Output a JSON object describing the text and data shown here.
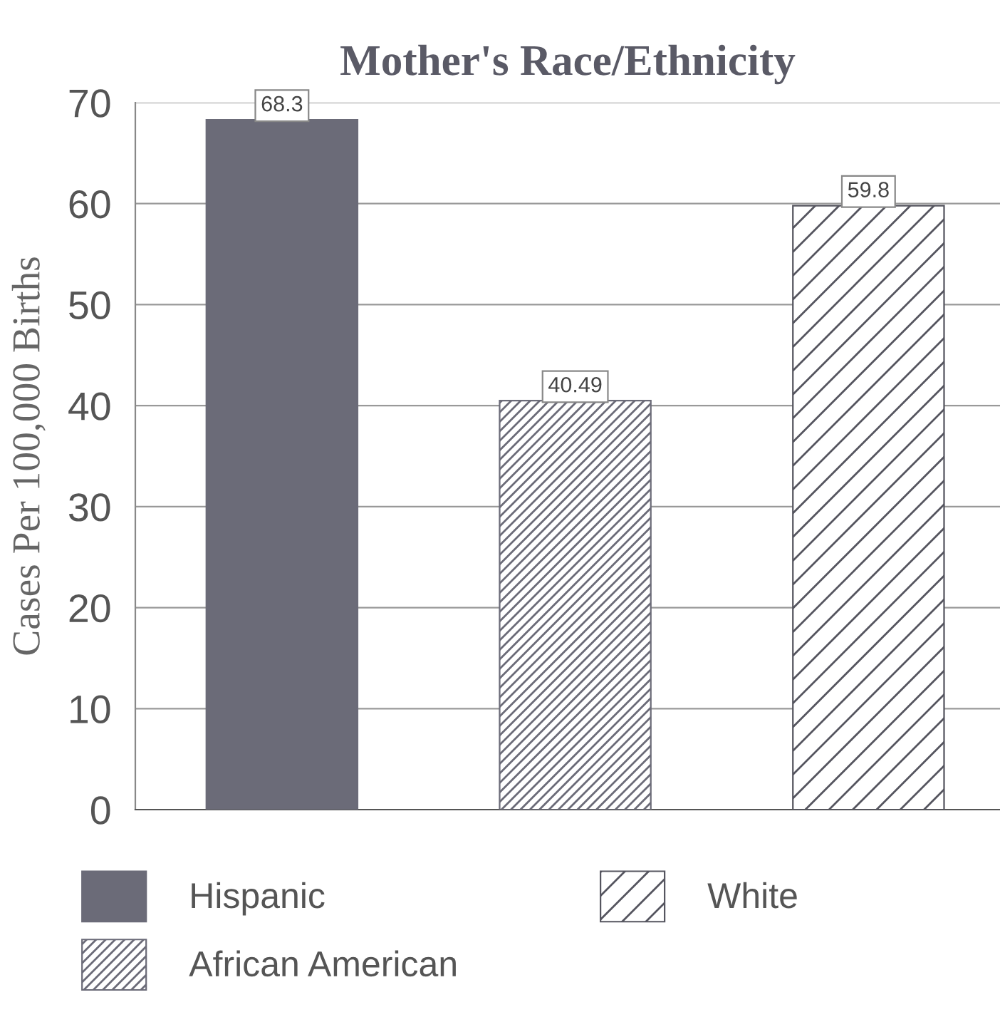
{
  "chart_data": {
    "type": "bar",
    "title": "Mother's Race/Ethnicity",
    "ylabel": "Cases Per 100,000 Births",
    "categories": [
      null
    ],
    "series": [
      {
        "name": "Hispanic",
        "color": "#6b6b78",
        "values": [
          68.3
        ]
      },
      {
        "name": "African American",
        "color": "#6b6b78",
        "values": [
          40.49
        ]
      },
      {
        "name": "White",
        "color": "#55555f",
        "values": [
          59.8
        ]
      }
    ],
    "ylim": [
      0,
      70
    ],
    "yticks": [
      0,
      10,
      20,
      30,
      40,
      50,
      60,
      70
    ],
    "grid": "y",
    "legend": "bottom",
    "data_labels": true
  }
}
